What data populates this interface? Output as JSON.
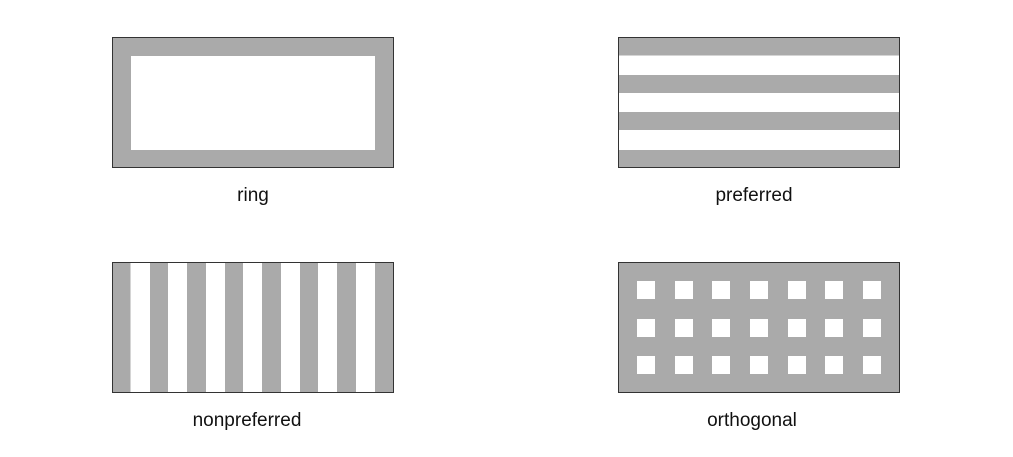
{
  "colors": {
    "fill": "#aaaaaa",
    "background": "#ffffff",
    "border": "#333333"
  },
  "patterns": [
    {
      "id": "ring",
      "label": "ring"
    },
    {
      "id": "preferred",
      "label": "preferred"
    },
    {
      "id": "nonpreferred",
      "label": "nonpreferred"
    },
    {
      "id": "orthogonal",
      "label": "orthogonal"
    }
  ]
}
